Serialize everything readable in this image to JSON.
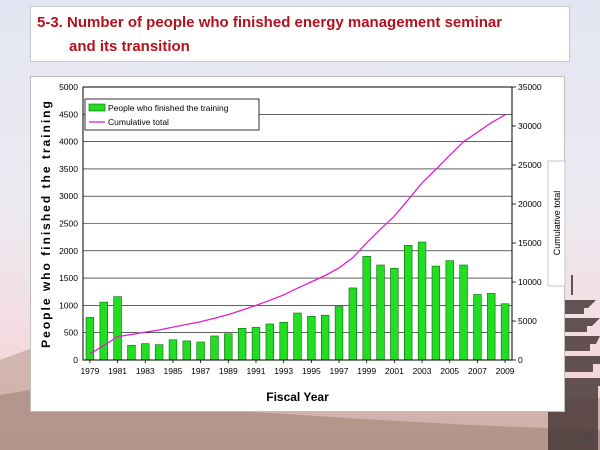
{
  "slide": {
    "title_line1": "5-3. Number of people who finished energy management seminar",
    "title_line2": "and its transition",
    "page_number": "29"
  },
  "colors": {
    "bar_fill": "#22dd22",
    "bar_stroke": "#0a6a0a",
    "line": "#e020d0",
    "title": "#b5101e"
  },
  "chart_data": {
    "type": "bar",
    "title": "",
    "xlabel": "Fiscal Year",
    "ylabel": "People who finished the training",
    "y2label": "Cumulative total",
    "ylim": [
      0,
      5000
    ],
    "y2lim": [
      0,
      35000
    ],
    "yticks": [
      "0",
      "500",
      "1000",
      "1500",
      "2000",
      "2500",
      "3000",
      "3500",
      "4000",
      "4500",
      "5000"
    ],
    "y2ticks": [
      "0",
      "5000",
      "10000",
      "15000",
      "20000",
      "25000",
      "30000",
      "35000"
    ],
    "xticks": [
      "1979",
      "1981",
      "1983",
      "1985",
      "1987",
      "1989",
      "1991",
      "1993",
      "1995",
      "1997",
      "1999",
      "2001",
      "2003",
      "2005",
      "2007",
      "2009"
    ],
    "grid": true,
    "legend_position": "top-left",
    "categories": [
      1979,
      1980,
      1981,
      1982,
      1983,
      1984,
      1985,
      1986,
      1987,
      1988,
      1989,
      1990,
      1991,
      1992,
      1993,
      1994,
      1995,
      1996,
      1997,
      1998,
      1999,
      2000,
      2001,
      2002,
      2003,
      2004,
      2005,
      2006,
      2007,
      2008,
      2009
    ],
    "series": [
      {
        "name": "People who finished the training",
        "kind": "bar",
        "axis": "left",
        "values": [
          780,
          1060,
          1160,
          270,
          300,
          280,
          370,
          350,
          330,
          440,
          480,
          580,
          600,
          660,
          690,
          860,
          800,
          820,
          980,
          1320,
          1900,
          1740,
          1680,
          2100,
          2160,
          1720,
          1820,
          1740,
          1200,
          1220,
          1030
        ]
      },
      {
        "name": "Cumulative total",
        "kind": "line",
        "axis": "right",
        "values": [
          780,
          1840,
          3000,
          3270,
          3570,
          3850,
          4220,
          4570,
          4900,
          5340,
          5820,
          6400,
          7000,
          7660,
          8350,
          9210,
          10010,
          10830,
          11810,
          13130,
          15030,
          16770,
          18450,
          20550,
          22710,
          24430,
          26250,
          27990,
          29190,
          30410,
          31440
        ]
      }
    ]
  }
}
